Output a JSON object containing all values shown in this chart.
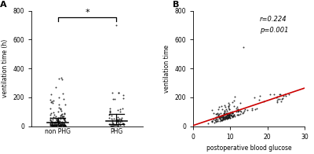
{
  "panel_A_label": "A",
  "panel_B_label": "B",
  "ylabel_A": "ventilation time (h)",
  "ylabel_B": "ventilation time",
  "xlabel_B": "postoperative blood glucose",
  "ylim_A": [
    0,
    800
  ],
  "yticks_A": [
    0,
    200,
    400,
    600,
    800
  ],
  "ylim_B": [
    0,
    800
  ],
  "yticks_B": [
    0,
    200,
    400,
    600,
    800
  ],
  "xlim_B": [
    0,
    30
  ],
  "xticks_B": [
    0,
    10,
    20,
    30
  ],
  "group_labels": [
    "non PHG",
    "PHG"
  ],
  "significance_text": "*",
  "annotation_r": "r=0.224",
  "annotation_p": "p=0.001",
  "dot_color": "#1a1a1a",
  "line_color": "#cc0000",
  "seed": 42
}
